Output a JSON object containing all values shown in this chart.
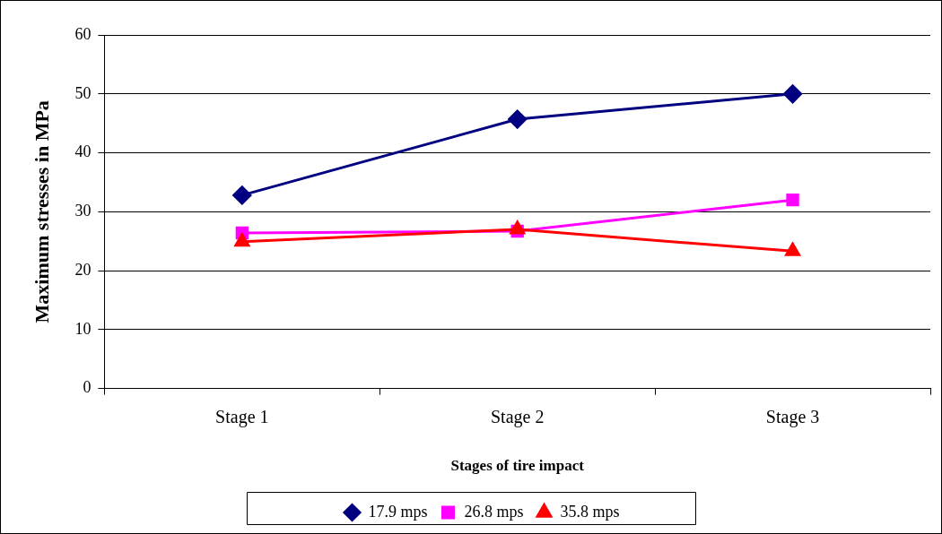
{
  "chart_data": {
    "type": "line",
    "xlabel": "Stages of tire impact",
    "ylabel": "Maximum stresses in MPa",
    "categories": [
      "Stage 1",
      "Stage 2",
      "Stage 3"
    ],
    "series": [
      {
        "name": "17.9 mps",
        "color": "#000080",
        "marker": "diamond",
        "values": [
          32.8,
          45.7,
          50.0
        ]
      },
      {
        "name": "26.8 mps",
        "color": "#ff00ff",
        "marker": "square",
        "values": [
          26.4,
          26.7,
          32.0
        ]
      },
      {
        "name": "35.8 mps",
        "color": "#ff0000",
        "marker": "triangle",
        "values": [
          24.9,
          27.0,
          23.3
        ]
      }
    ],
    "ylim": [
      0,
      60
    ],
    "yticks": [
      0,
      10,
      20,
      30,
      40,
      50,
      60
    ],
    "grid": "y",
    "legend": "bottom",
    "line_style": "solid"
  }
}
